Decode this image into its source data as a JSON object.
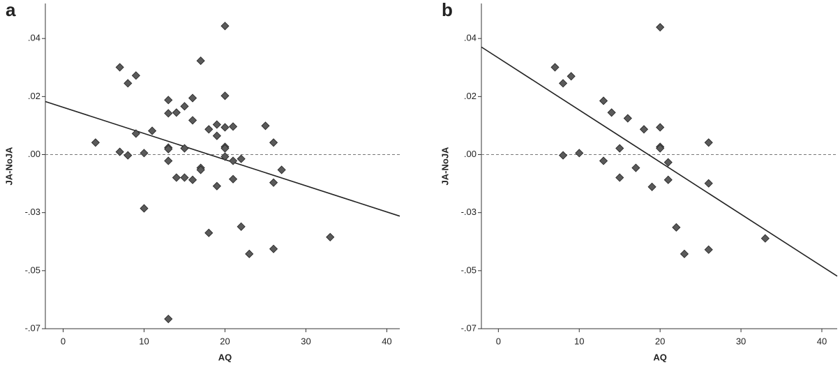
{
  "chart_data": [
    {
      "type": "scatter",
      "panel_label": "a",
      "xlabel": "AQ",
      "ylabel": "JA-NoJA",
      "color": "#5a5a5a",
      "line_color": "#222222",
      "x": [
        4,
        7,
        7,
        8,
        8,
        9,
        9,
        10,
        10,
        11,
        13,
        13,
        13,
        13,
        13,
        13,
        14,
        14,
        15,
        15,
        15,
        16,
        16,
        16,
        17,
        17,
        17,
        18,
        18,
        19,
        19,
        19,
        20,
        20,
        20,
        20,
        20,
        20,
        21,
        21,
        21,
        22,
        22,
        23,
        25,
        26,
        26,
        26,
        27,
        33
      ],
      "y": [
        0.0024,
        0.0325,
        -0.0013,
        0.0261,
        -0.0027,
        0.0292,
        0.006,
        -0.0018,
        -0.0239,
        0.0071,
        0.0194,
        0.0141,
        0.0004,
        -0.0002,
        -0.0049,
        -0.0681,
        0.0144,
        -0.0116,
        0.0169,
        0.0001,
        -0.0116,
        0.0202,
        0.0113,
        -0.0125,
        0.0351,
        -0.0077,
        -0.0085,
        0.0077,
        -0.0337,
        0.0096,
        0.0051,
        -0.015,
        0.049,
        0.0211,
        0.0085,
        0.0007,
        0.0001,
        -0.0032,
        0.0088,
        -0.0049,
        -0.0122,
        -0.0041,
        -0.0312,
        -0.0421,
        0.0091,
        0.0024,
        -0.0136,
        -0.0401,
        -0.0085,
        -0.0354
      ],
      "regression_line": {
        "x": [
          -2.2,
          41.6
        ],
        "y": [
          0.0188,
          -0.027
        ]
      },
      "xlim": [
        -2.2,
        41.6
      ],
      "ylim": [
        -0.072,
        0.058
      ],
      "xticks": [
        0,
        10,
        20,
        30,
        40
      ],
      "yticks": [
        {
          "value": 0.044,
          "label": ".04"
        },
        {
          "value": 0.0208,
          "label": ".02"
        },
        {
          "value": -0.0024,
          "label": ".00"
        },
        {
          "value": -0.0256,
          "label": "-.03"
        },
        {
          "value": -0.0488,
          "label": "-.05"
        },
        {
          "value": -0.072,
          "label": "-.07"
        }
      ]
    },
    {
      "type": "scatter",
      "panel_label": "b",
      "xlabel": "AQ",
      "ylabel": "JA-NoJA",
      "color": "#5a5a5a",
      "line_color": "#222222",
      "x": [
        7,
        8,
        8,
        9,
        10,
        13,
        13,
        14,
        15,
        15,
        16,
        17,
        18,
        19,
        20,
        20,
        20,
        20,
        21,
        21,
        22,
        23,
        26,
        26,
        26,
        33
      ],
      "y": [
        0.0325,
        0.0261,
        -0.0027,
        0.0289,
        -0.0018,
        0.0191,
        -0.0049,
        0.0144,
        0.0001,
        -0.0116,
        0.0121,
        -0.0077,
        0.0077,
        -0.0153,
        0.0485,
        0.0085,
        0.0007,
        0.0001,
        -0.0055,
        -0.0125,
        -0.0315,
        -0.0421,
        0.0024,
        -0.0139,
        -0.0404,
        -0.0359
      ],
      "regression_line": {
        "x": [
          -2.1,
          41.9
        ],
        "y": [
          0.0406,
          -0.051
        ]
      },
      "xlim": [
        -2.1,
        41.9
      ],
      "ylim": [
        -0.072,
        0.058
      ],
      "xticks": [
        0,
        10,
        20,
        30,
        40
      ],
      "yticks": [
        {
          "value": 0.044,
          "label": ".04"
        },
        {
          "value": 0.0208,
          "label": ".02"
        },
        {
          "value": -0.0024,
          "label": ".00"
        },
        {
          "value": -0.0256,
          "label": "-.03"
        },
        {
          "value": -0.0488,
          "label": "-.05"
        },
        {
          "value": -0.072,
          "label": "-.07"
        }
      ]
    }
  ]
}
